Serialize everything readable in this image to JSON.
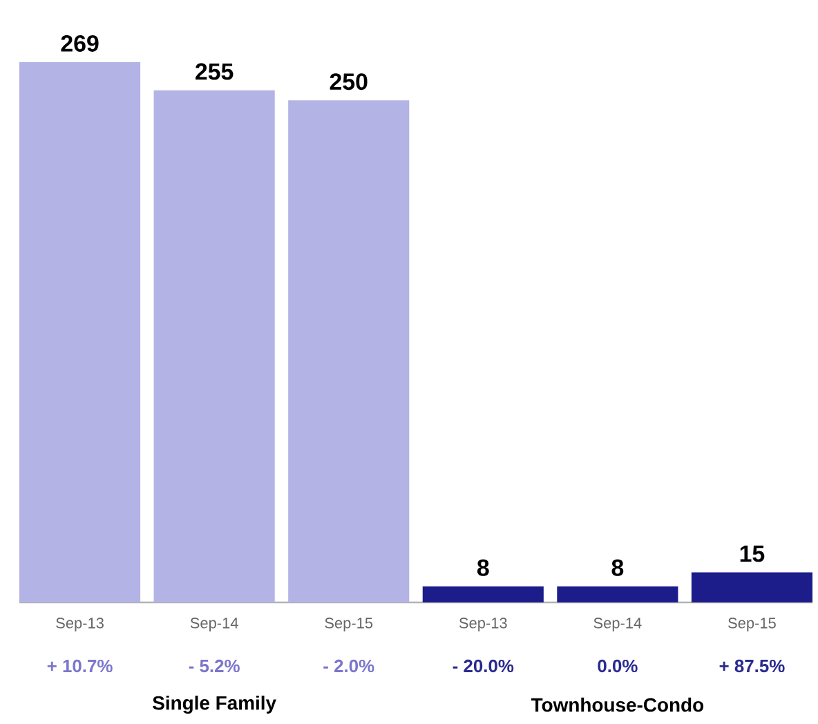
{
  "chart_data": {
    "type": "bar",
    "categories": [
      "Sep-13",
      "Sep-14",
      "Sep-15",
      "Sep-13",
      "Sep-14",
      "Sep-15"
    ],
    "series": [
      {
        "color": "#b3b3e5",
        "values": [
          269,
          255,
          250,
          null,
          null,
          null
        ]
      },
      {
        "color": "#1c1c8a",
        "values": [
          null,
          null,
          null,
          8,
          8,
          15
        ]
      }
    ],
    "data_labels": true,
    "annotations": [
      "+ 10.7%",
      "- 5.2%",
      "- 2.0%",
      "- 20.0%",
      "0.0%",
      "+ 87.5%",
      "Single Family",
      "Townhouse-Condo"
    ]
  }
}
